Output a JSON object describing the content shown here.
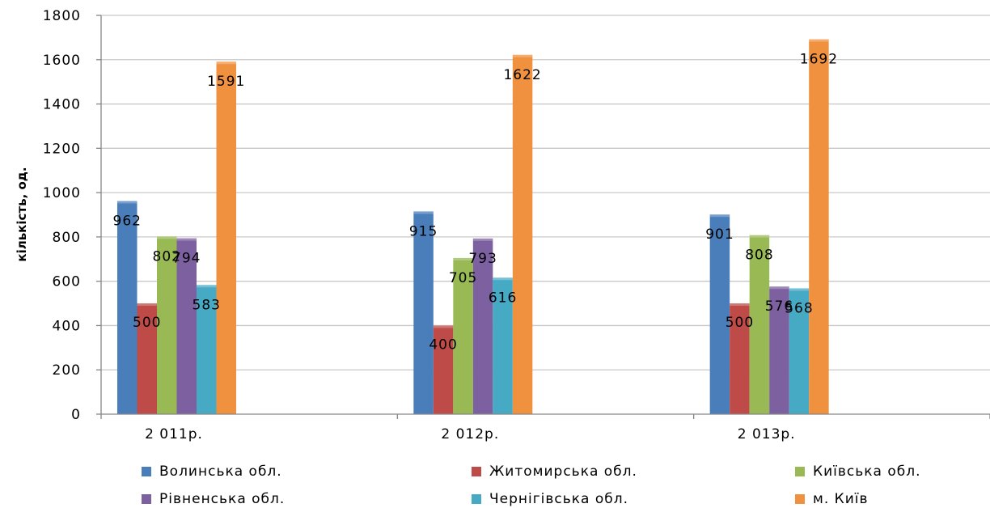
{
  "chart_data": {
    "type": "bar",
    "categories": [
      "2 011р.",
      "2 012р.",
      "2 013р."
    ],
    "series": [
      {
        "name": "Волинська обл.",
        "color": "#4A7EBB",
        "values": [
          962,
          915,
          901
        ]
      },
      {
        "name": "Житомирська обл.",
        "color": "#BE4B48",
        "values": [
          500,
          400,
          500
        ]
      },
      {
        "name": "Київська обл.",
        "color": "#98B954",
        "values": [
          802,
          705,
          808
        ]
      },
      {
        "name": "Рівненська обл.",
        "color": "#7D60A0",
        "values": [
          794,
          793,
          576
        ]
      },
      {
        "name": "Чернігівська обл.",
        "color": "#46AAC5",
        "values": [
          583,
          616,
          568
        ]
      },
      {
        "name": "м. Київ",
        "color": "#F0913F",
        "values": [
          1591,
          1622,
          1692
        ]
      }
    ],
    "data_labels": [
      [
        "962",
        "915",
        "901"
      ],
      [
        "500",
        "400",
        "500"
      ],
      [
        "802",
        "705",
        "808"
      ],
      [
        "794",
        "793",
        "576"
      ],
      [
        "583",
        "616",
        "568"
      ],
      [
        "1591",
        "1622",
        "1692"
      ]
    ],
    "ylabel": "кількість, од.",
    "xlabel": "",
    "ylim": [
      0,
      1800
    ],
    "yticks": [
      "0",
      "200",
      "400",
      "600",
      "800",
      "1000",
      "1200",
      "1400",
      "1600",
      "1800"
    ],
    "grid": true,
    "legend_position": "bottom"
  }
}
